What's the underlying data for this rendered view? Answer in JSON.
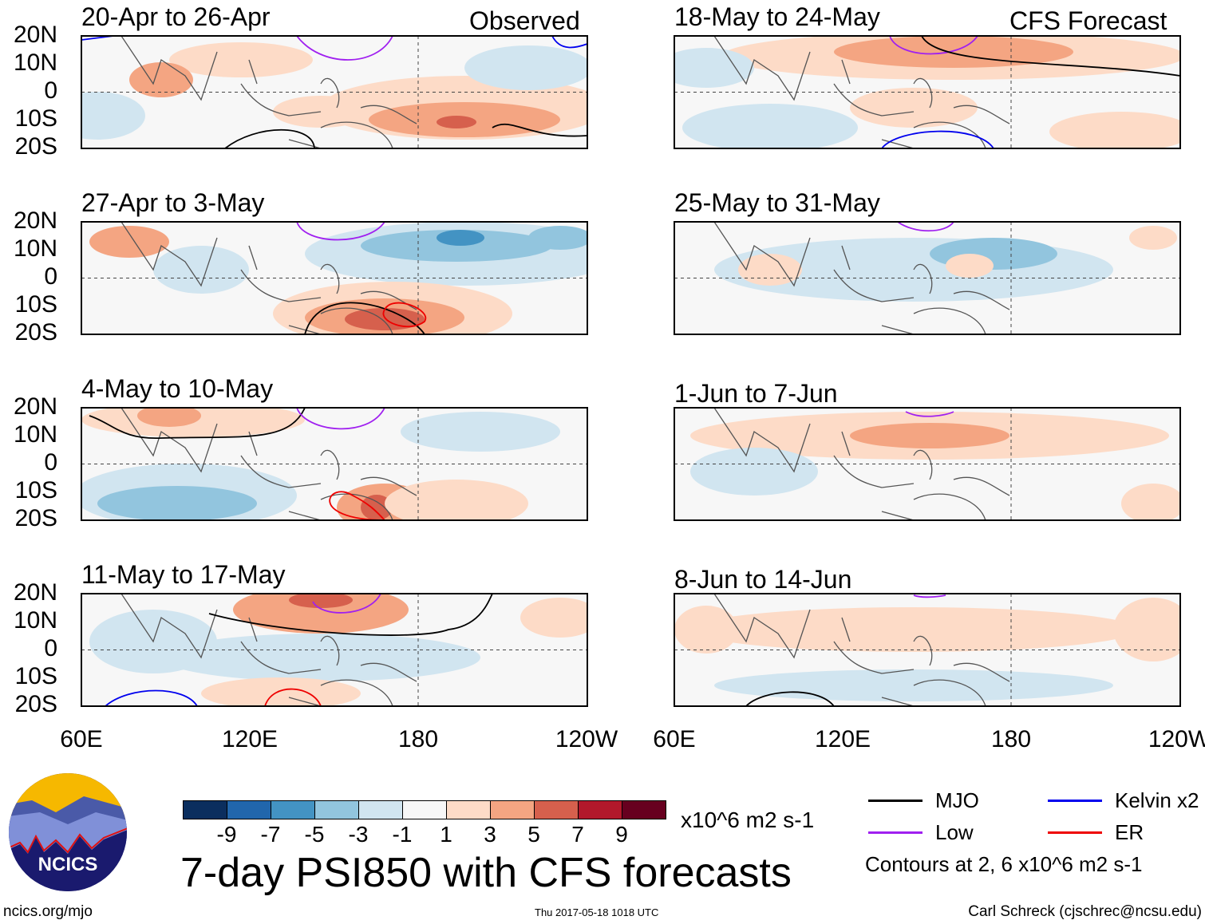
{
  "chart_data": {
    "type": "heatmap",
    "title": "7-day PSI850 with CFS forecasts",
    "variable": "PSI850 anomaly",
    "units": "x10^6 m2 s-1",
    "lat_ticks": [
      "20N",
      "10N",
      "0",
      "10S",
      "20S"
    ],
    "lon_ticks": [
      "60E",
      "120E",
      "180",
      "120W"
    ],
    "lat_range": [
      -20,
      20
    ],
    "lon_range": [
      60,
      240
    ],
    "columns": [
      {
        "label": "Observed",
        "panels": [
          "20-Apr to 26-Apr",
          "27-Apr to 3-May",
          "4-May to 10-May",
          "11-May to 17-May"
        ]
      },
      {
        "label": "CFS Forecast",
        "panels": [
          "18-May to 24-May",
          "25-May to 31-May",
          "1-Jun to 7-Jun",
          "8-Jun to 14-Jun"
        ]
      }
    ],
    "colorbar": {
      "ticks": [
        "-9",
        "-7",
        "-5",
        "-3",
        "-1",
        "1",
        "3",
        "5",
        "7",
        "9"
      ],
      "colors": [
        "#0b2e5e",
        "#2166ac",
        "#4393c3",
        "#92c5de",
        "#d1e5f0",
        "#f7f7f7",
        "#fddbc7",
        "#f4a582",
        "#d6604d",
        "#b2182b",
        "#67001f"
      ]
    },
    "contour_legend": [
      {
        "label": "MJO",
        "color": "#000000"
      },
      {
        "label": "Kelvin x2",
        "color": "#0000ee"
      },
      {
        "label": "Low",
        "color": "#a020f0"
      },
      {
        "label": "ER",
        "color": "#ee0000"
      }
    ],
    "contour_note": "Contours at 2, 6 x10^6 m2 s-1"
  },
  "footer": {
    "left": "ncics.org/mjo",
    "center": "Thu 2017-05-18 1018 UTC",
    "right": "Carl Schreck (cjschrec@ncsu.edu)"
  },
  "logo": {
    "text": "NCICS"
  }
}
